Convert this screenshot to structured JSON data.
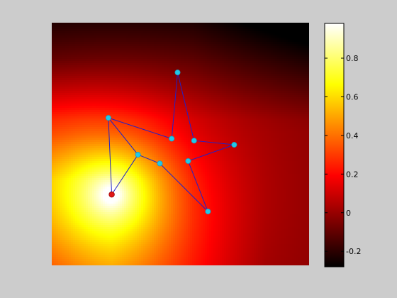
{
  "chart_data": {
    "type": "heatmap",
    "title": "",
    "xlabel": "",
    "ylabel": "",
    "colormap": "hot",
    "background_color": "#cccccc",
    "polygon_color": "#2020c8",
    "vertex_color": "#22c8e8",
    "source_color": "#e01818",
    "colorbar": {
      "range": [
        -0.28,
        0.98
      ],
      "ticks": [
        -0.2,
        0,
        0.2,
        0.4,
        0.6,
        0.8
      ],
      "tick_labels": [
        "-0.2",
        "0",
        "0.2",
        "0.4",
        "0.6",
        "0.8"
      ]
    },
    "domain": {
      "xlim": [
        0,
        1
      ],
      "ylim": [
        0,
        1
      ]
    },
    "polygon": [
      {
        "x": 0.489,
        "y": 0.795
      },
      {
        "x": 0.553,
        "y": 0.514
      },
      {
        "x": 0.709,
        "y": 0.497
      },
      {
        "x": 0.53,
        "y": 0.43
      },
      {
        "x": 0.607,
        "y": 0.222
      },
      {
        "x": 0.42,
        "y": 0.42
      },
      {
        "x": 0.335,
        "y": 0.456
      },
      {
        "x": 0.22,
        "y": 0.608
      },
      {
        "x": 0.466,
        "y": 0.522
      }
    ],
    "source": {
      "x": 0.233,
      "y": 0.292
    }
  }
}
